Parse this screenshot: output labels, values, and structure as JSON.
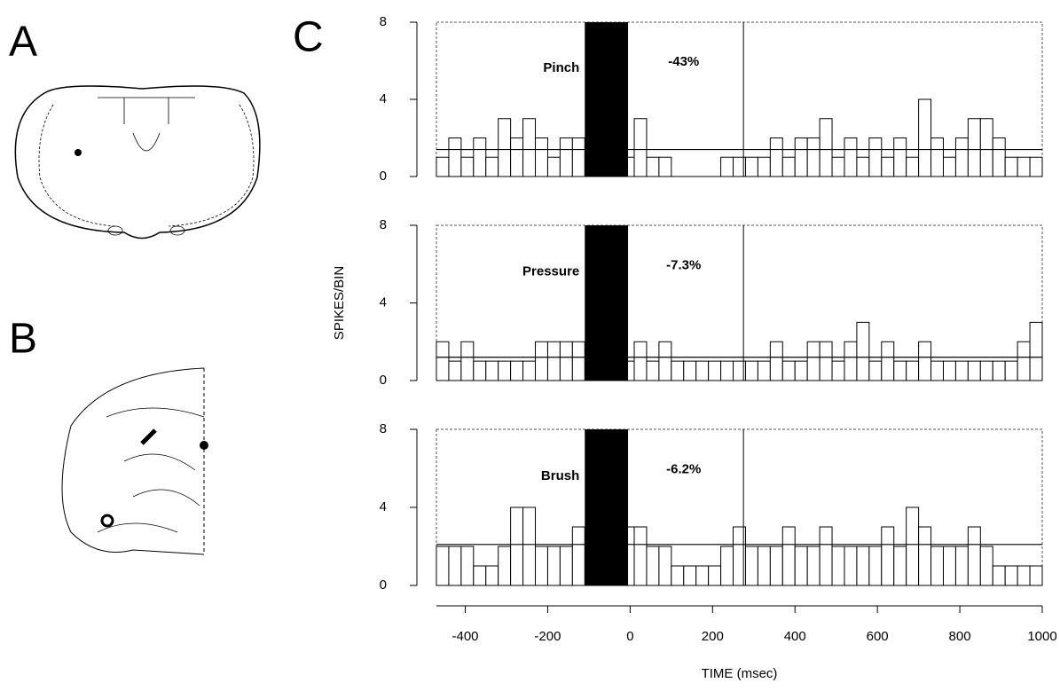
{
  "panel_labels": [
    "A",
    "B",
    "C"
  ],
  "chart_data": [
    {
      "type": "histogram",
      "label": "Pinch",
      "annotation": "-43%",
      "bins": [
        -470,
        -440,
        -410,
        -380,
        -350,
        -320,
        -290,
        -260,
        -230,
        -200,
        -170,
        -140,
        -110,
        -80,
        -50,
        -20,
        10,
        40,
        70,
        100,
        130,
        160,
        190,
        220,
        250,
        280,
        310,
        340,
        370,
        400,
        430,
        460,
        490,
        520,
        550,
        580,
        610,
        640,
        670,
        700,
        730,
        760,
        790,
        820,
        850,
        880,
        910,
        940,
        970,
        1000
      ],
      "values": [
        1,
        2,
        1,
        2,
        1,
        3,
        2,
        3,
        2,
        1,
        2,
        2,
        0,
        0,
        0,
        1,
        3,
        1,
        1,
        0,
        0,
        0,
        0,
        1,
        1,
        1,
        1,
        2,
        1,
        2,
        2,
        3,
        1,
        2,
        1,
        2,
        1,
        2,
        1,
        4,
        2,
        1,
        2,
        3,
        3,
        2,
        1,
        1,
        1
      ],
      "xlim": [
        -470,
        1000
      ],
      "ylim": [
        0,
        8
      ],
      "yticks": [
        0,
        4,
        8
      ],
      "stimulus": [
        -110,
        -5
      ],
      "marker": 275,
      "baseline": 1.4
    },
    {
      "type": "histogram",
      "label": "Pressure",
      "annotation": "-7.3%",
      "ylabel": "SPIKES/BIN",
      "bins": [
        -470,
        -440,
        -410,
        -380,
        -350,
        -320,
        -290,
        -260,
        -230,
        -200,
        -170,
        -140,
        -110,
        -80,
        -50,
        -20,
        10,
        40,
        70,
        100,
        130,
        160,
        190,
        220,
        250,
        280,
        310,
        340,
        370,
        400,
        430,
        460,
        490,
        520,
        550,
        580,
        610,
        640,
        670,
        700,
        730,
        760,
        790,
        820,
        850,
        880,
        910,
        940,
        970,
        1000
      ],
      "values": [
        2,
        1,
        2,
        1,
        1,
        1,
        1,
        1,
        2,
        2,
        2,
        2,
        0,
        0,
        0,
        1,
        2,
        1,
        2,
        1,
        1,
        1,
        1,
        1,
        1,
        1,
        1,
        2,
        1,
        1,
        2,
        2,
        1,
        2,
        3,
        1,
        2,
        1,
        1,
        2,
        1,
        1,
        1,
        1,
        1,
        1,
        1,
        2,
        3
      ],
      "xlim": [
        -470,
        1000
      ],
      "ylim": [
        0,
        8
      ],
      "yticks": [
        0,
        4,
        8
      ],
      "stimulus": [
        -110,
        -5
      ],
      "marker": 275,
      "baseline": 1.2
    },
    {
      "type": "histogram",
      "label": "Brush",
      "annotation": "-6.2%",
      "xlabel": "TIME  (msec)",
      "bins": [
        -470,
        -440,
        -410,
        -380,
        -350,
        -320,
        -290,
        -260,
        -230,
        -200,
        -170,
        -140,
        -110,
        -80,
        -50,
        -20,
        10,
        40,
        70,
        100,
        130,
        160,
        190,
        220,
        250,
        280,
        310,
        340,
        370,
        400,
        430,
        460,
        490,
        520,
        550,
        580,
        610,
        640,
        670,
        700,
        730,
        760,
        790,
        820,
        850,
        880,
        910,
        940,
        970,
        1000
      ],
      "values": [
        2,
        2,
        2,
        1,
        1,
        2,
        4,
        4,
        2,
        2,
        2,
        3,
        0,
        0,
        0,
        3,
        3,
        2,
        2,
        1,
        1,
        1,
        1,
        2,
        3,
        2,
        2,
        2,
        3,
        2,
        2,
        3,
        2,
        2,
        2,
        2,
        3,
        2,
        4,
        3,
        2,
        2,
        2,
        3,
        2,
        1,
        1,
        1,
        1
      ],
      "xlim": [
        -470,
        1000
      ],
      "ylim": [
        0,
        8
      ],
      "yticks": [
        0,
        4,
        8
      ],
      "xticks": [
        -400,
        -200,
        0,
        200,
        400,
        600,
        800,
        1000
      ],
      "stimulus": [
        -110,
        -5
      ],
      "marker": 275,
      "baseline": 2.1
    }
  ]
}
